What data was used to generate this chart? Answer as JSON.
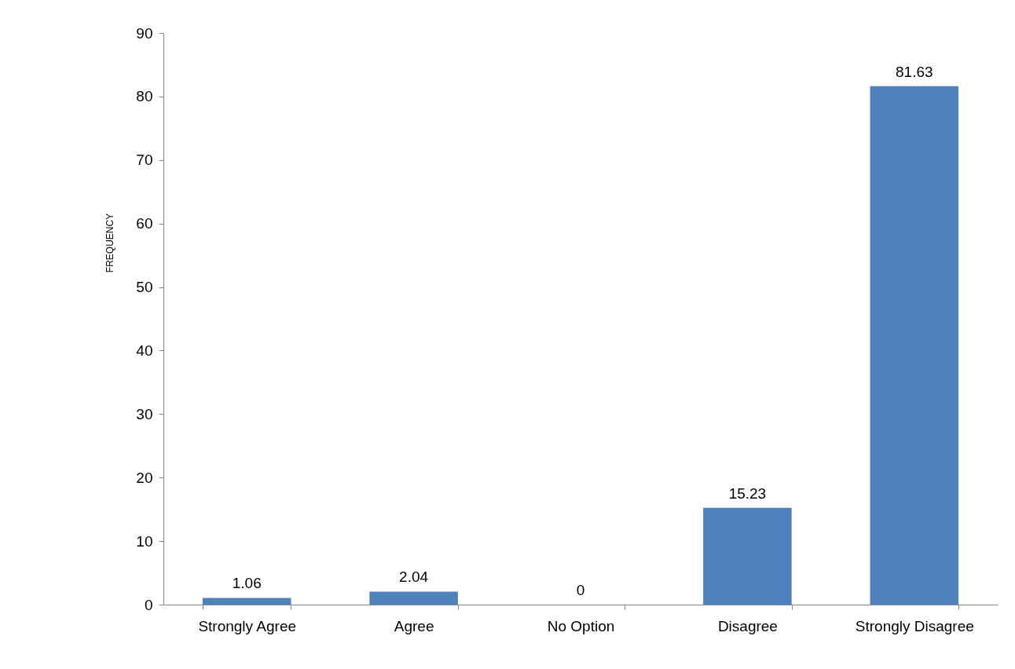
{
  "chart_data": {
    "type": "bar",
    "ylabel": "FREQUENCY",
    "categories": [
      "Strongly Agree",
      "Agree",
      "No Option",
      "Disagree",
      "Strongly Disagree"
    ],
    "values": [
      1.06,
      2.04,
      0,
      15.23,
      81.63
    ],
    "color": "#4f81bd",
    "ylim": [
      0,
      90
    ],
    "yticks": [
      0,
      10,
      20,
      30,
      40,
      50,
      60,
      70,
      80,
      90
    ],
    "data_labels": true,
    "grid": false
  }
}
